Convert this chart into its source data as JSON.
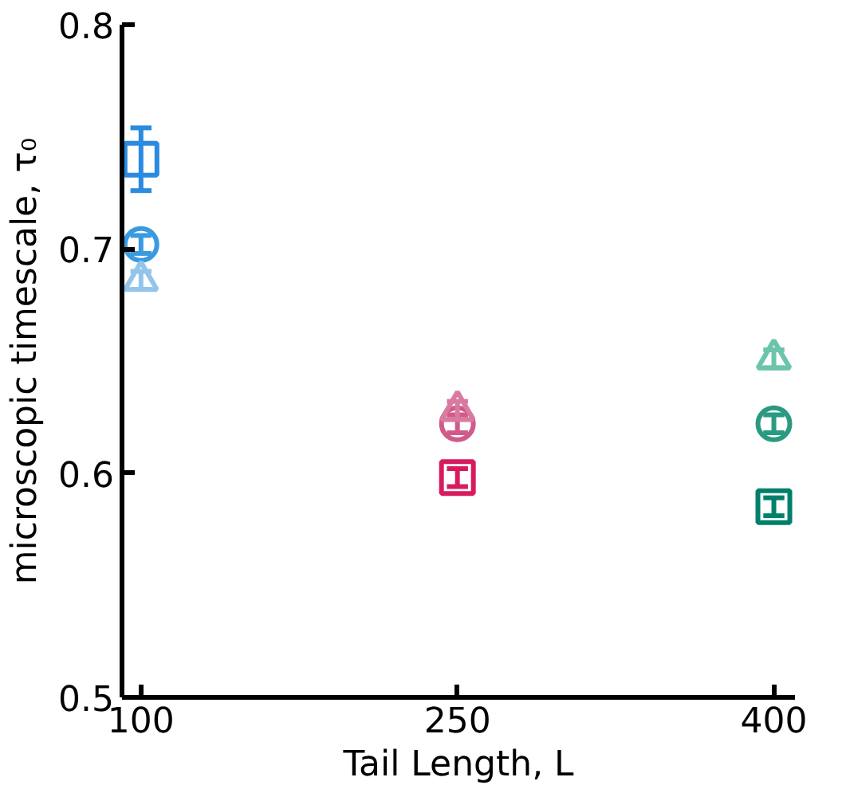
{
  "chart_data": {
    "type": "scatter",
    "xlabel": "Tail Length, L",
    "ylabel": "microscopic timescale, τ₀",
    "x": [
      100,
      250,
      400
    ],
    "xlim": [
      91,
      410
    ],
    "xticks": [
      100,
      250,
      400
    ],
    "ylim": [
      0.5,
      0.8
    ],
    "yticks": [
      0.5,
      0.6,
      0.7,
      0.8
    ],
    "grid": false,
    "series": [
      {
        "marker": "square",
        "colors": [
          "#2a8be0",
          "#d81b60",
          "#00806a"
        ],
        "values": [
          0.74,
          0.598,
          0.585
        ],
        "errors": [
          0.014,
          0.004,
          0.004
        ]
      },
      {
        "marker": "circle",
        "colors": [
          "#3a9ae0",
          "#d05b8a",
          "#2a9a80"
        ],
        "values": [
          0.702,
          0.622,
          0.622
        ],
        "errors": [
          0.004,
          0.004,
          0.004
        ]
      },
      {
        "marker": "triangle",
        "colors": [
          "#94c4ea",
          "#d97aa0",
          "#6cc4ad"
        ],
        "values": [
          0.686,
          0.628,
          0.651
        ],
        "errors": [
          0.004,
          0.004,
          0.004
        ]
      }
    ]
  }
}
